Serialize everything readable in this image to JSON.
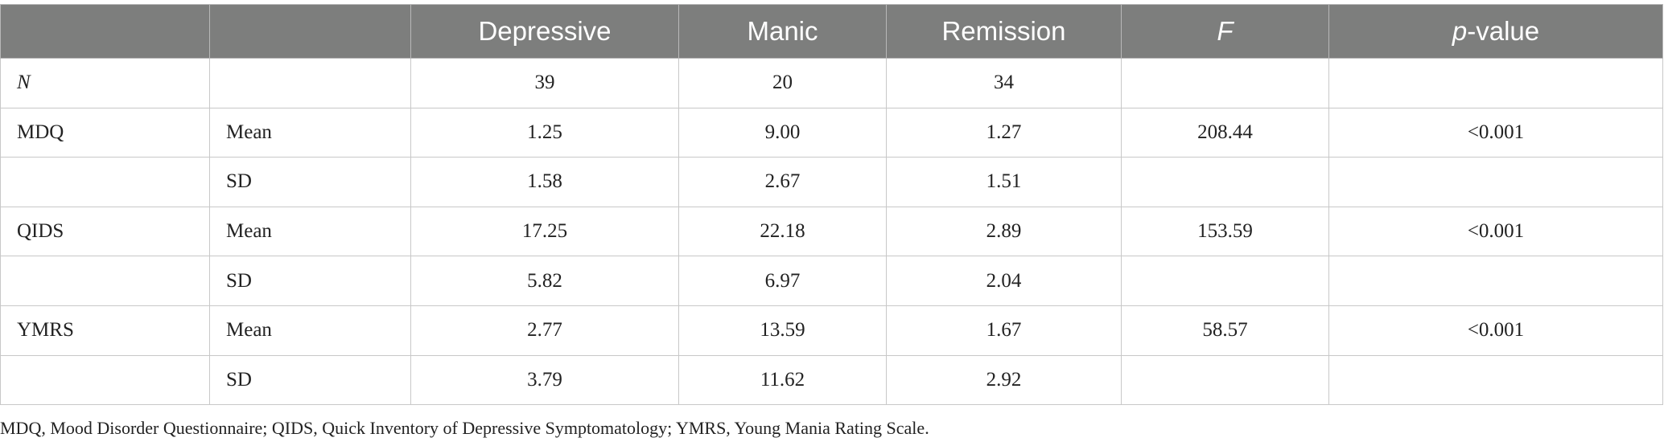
{
  "table": {
    "headers": [
      "",
      "",
      "Depressive",
      "Manic",
      "Remission",
      "F",
      "p-value"
    ],
    "header_p_letter": "p",
    "header_p_rest": "-value",
    "rows": [
      [
        "N",
        "",
        "39",
        "20",
        "34",
        "",
        ""
      ],
      [
        "MDQ",
        "Mean",
        "1.25",
        "9.00",
        "1.27",
        "208.44",
        "<0.001"
      ],
      [
        "",
        "SD",
        "1.58",
        "2.67",
        "1.51",
        "",
        ""
      ],
      [
        "QIDS",
        "Mean",
        "17.25",
        "22.18",
        "2.89",
        "153.59",
        "<0.001"
      ],
      [
        "",
        "SD",
        "5.82",
        "6.97",
        "2.04",
        "",
        ""
      ],
      [
        "YMRS",
        "Mean",
        "2.77",
        "13.59",
        "1.67",
        "58.57",
        "<0.001"
      ],
      [
        "",
        "SD",
        "3.79",
        "11.62",
        "2.92",
        "",
        ""
      ]
    ]
  },
  "footnote": "MDQ, Mood Disorder Questionnaire; QIDS, Quick Inventory of Depressive Symptomatology; YMRS, Young Mania Rating Scale.",
  "colors": {
    "header_bg": "#7d7e7d",
    "header_text": "#ffffff",
    "grid": "#c8c8c8"
  }
}
